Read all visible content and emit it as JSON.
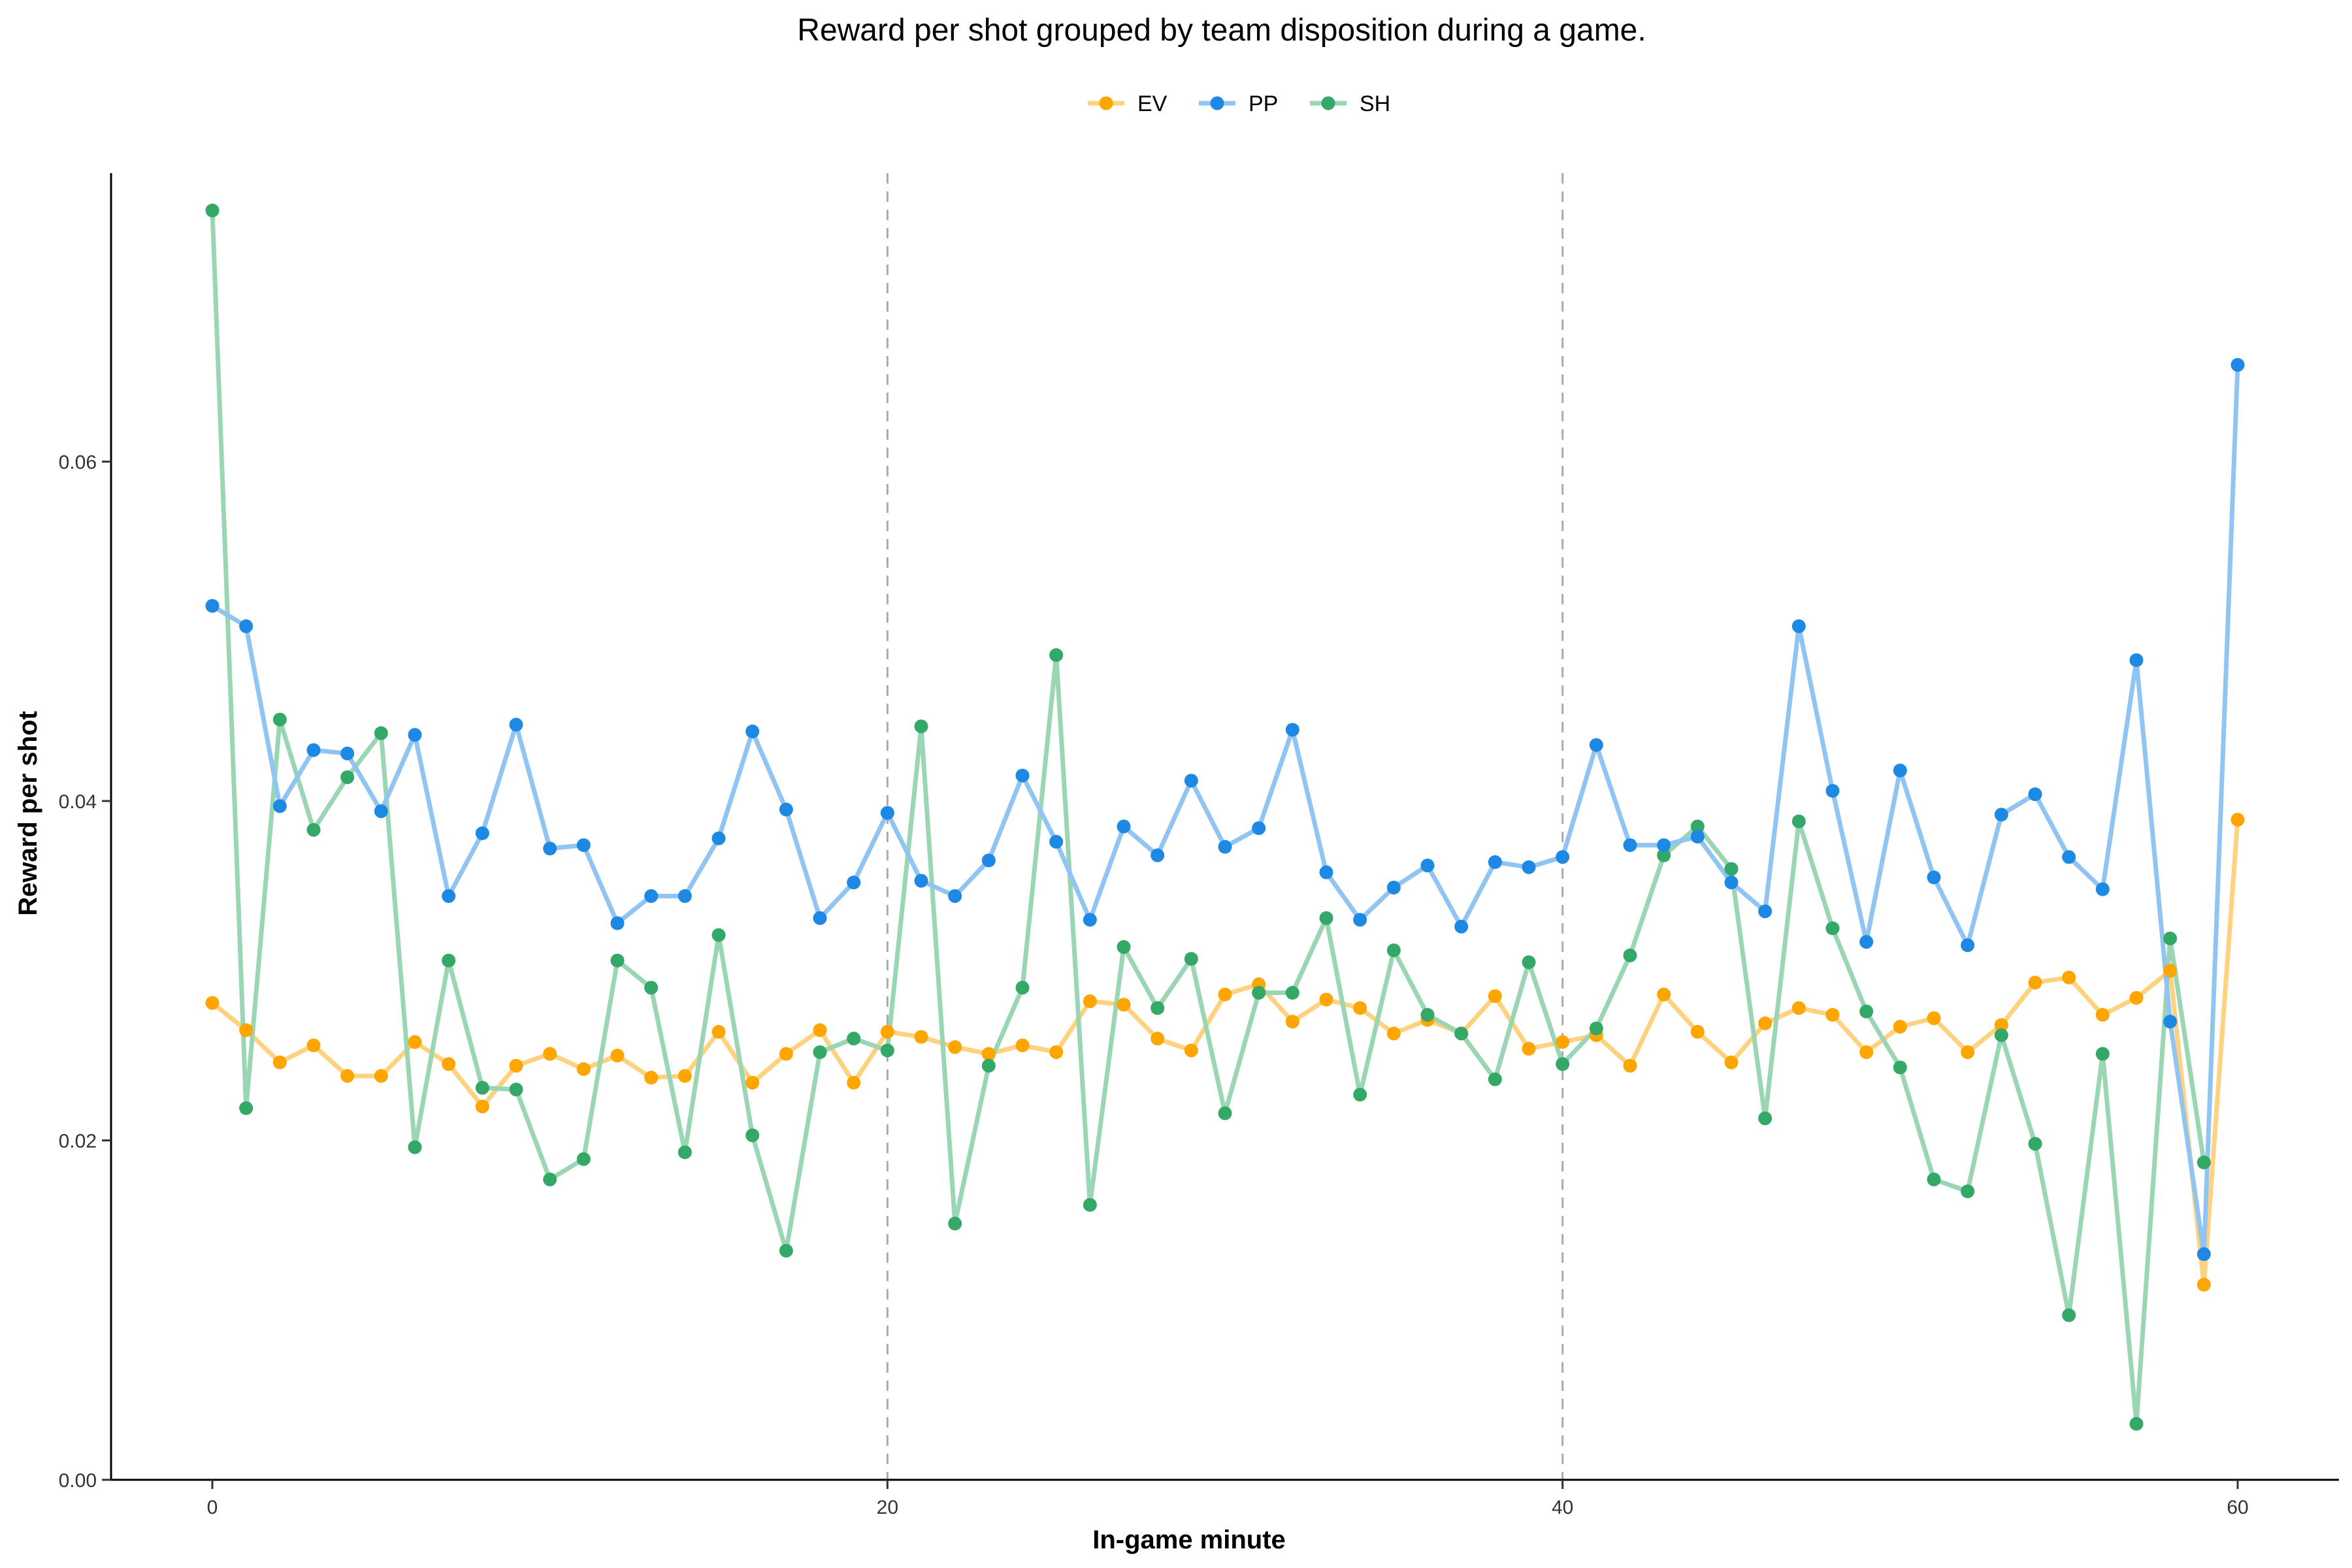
{
  "chart_data": {
    "type": "line",
    "title": "Reward per shot grouped by team disposition during a game.",
    "xlabel": "In-game minute",
    "ylabel": "Reward per shot",
    "xlim": [
      -3,
      63
    ],
    "ylim": [
      0,
      0.077
    ],
    "x_ticks": [
      0,
      20,
      40,
      60
    ],
    "x_tick_labels": [
      "0",
      "20",
      "40",
      "60"
    ],
    "y_ticks": [
      0,
      0.02,
      0.04,
      0.06
    ],
    "y_tick_labels": [
      "0.00",
      "0.02",
      "0.04",
      "0.06"
    ],
    "vlines": [
      20,
      40
    ],
    "grid": false,
    "legend_position": "top",
    "series": [
      {
        "name": "EV",
        "color": "#FFA500",
        "line_color": "#FFD27F",
        "x": [
          0,
          1,
          2,
          3,
          4,
          5,
          6,
          7,
          8,
          9,
          10,
          11,
          12,
          13,
          14,
          15,
          16,
          17,
          18,
          19,
          20,
          21,
          22,
          23,
          24,
          25,
          26,
          27,
          28,
          29,
          30,
          31,
          32,
          33,
          34,
          35,
          36,
          37,
          38,
          39,
          40,
          41,
          42,
          43,
          44,
          45,
          46,
          47,
          48,
          49,
          50,
          51,
          52,
          53,
          54,
          55,
          56,
          57,
          58,
          59,
          60
        ],
        "values": [
          0.0281,
          0.0265,
          0.0246,
          0.0256,
          0.0238,
          0.0238,
          0.0258,
          0.0245,
          0.022,
          0.0244,
          0.0251,
          0.0242,
          0.025,
          0.0237,
          0.0238,
          0.0264,
          0.0234,
          0.0251,
          0.0265,
          0.0234,
          0.0264,
          0.0261,
          0.0255,
          0.0251,
          0.0256,
          0.0252,
          0.0282,
          0.028,
          0.026,
          0.0253,
          0.0286,
          0.0292,
          0.027,
          0.0283,
          0.0278,
          0.0263,
          0.0271,
          0.0263,
          0.0285,
          0.0254,
          0.0258,
          0.0262,
          0.0244,
          0.0286,
          0.0264,
          0.0246,
          0.0269,
          0.0278,
          0.0274,
          0.0252,
          0.0267,
          0.0272,
          0.0252,
          0.0268,
          0.0293,
          0.0296,
          0.0274,
          0.0284,
          0.03,
          0.0115,
          0.0389
        ]
      },
      {
        "name": "PP",
        "color": "#1E88E5",
        "line_color": "#90C4F2",
        "x": [
          0,
          1,
          2,
          3,
          4,
          5,
          6,
          7,
          8,
          9,
          10,
          11,
          12,
          13,
          14,
          15,
          16,
          17,
          18,
          19,
          20,
          21,
          22,
          23,
          24,
          25,
          26,
          27,
          28,
          29,
          30,
          31,
          32,
          33,
          34,
          35,
          36,
          37,
          38,
          39,
          40,
          41,
          42,
          43,
          44,
          45,
          46,
          47,
          48,
          49,
          50,
          51,
          52,
          53,
          54,
          55,
          56,
          57,
          58,
          59,
          60
        ],
        "values": [
          0.0515,
          0.0503,
          0.0397,
          0.043,
          0.0428,
          0.0394,
          0.0439,
          0.0344,
          0.0381,
          0.0445,
          0.0372,
          0.0374,
          0.0328,
          0.0344,
          0.0344,
          0.0378,
          0.0441,
          0.0395,
          0.0331,
          0.0352,
          0.0393,
          0.0353,
          0.0344,
          0.0365,
          0.0415,
          0.0376,
          0.033,
          0.0385,
          0.0368,
          0.0412,
          0.0373,
          0.0384,
          0.0442,
          0.0358,
          0.033,
          0.0349,
          0.0362,
          0.0326,
          0.0364,
          0.0361,
          0.0367,
          0.0433,
          0.0374,
          0.0374,
          0.0379,
          0.0352,
          0.0335,
          0.0503,
          0.0406,
          0.0317,
          0.0418,
          0.0355,
          0.0315,
          0.0392,
          0.0404,
          0.0367,
          0.0348,
          0.0483,
          0.027,
          0.0133,
          0.0657
        ]
      },
      {
        "name": "SH",
        "color": "#33A867",
        "line_color": "#9AD6B3",
        "x": [
          0,
          1,
          2,
          3,
          4,
          5,
          6,
          7,
          8,
          9,
          10,
          11,
          12,
          13,
          14,
          15,
          16,
          17,
          18,
          19,
          20,
          21,
          22,
          23,
          24,
          25,
          26,
          27,
          28,
          29,
          30,
          31,
          32,
          33,
          34,
          35,
          36,
          37,
          38,
          39,
          40,
          41,
          42,
          43,
          44,
          45,
          46,
          47,
          48,
          49,
          50,
          51,
          52,
          53,
          54,
          55,
          56,
          57,
          58,
          59,
          60
        ],
        "values": [
          0.0748,
          0.0219,
          0.0448,
          0.0383,
          0.0414,
          0.044,
          0.0196,
          0.0306,
          0.0231,
          0.023,
          0.0177,
          0.0189,
          0.0306,
          0.029,
          0.0193,
          0.0321,
          0.0203,
          0.0135,
          0.0252,
          0.026,
          0.0253,
          0.0444,
          0.0151,
          0.0244,
          0.029,
          0.0486,
          0.0162,
          0.0314,
          0.0278,
          0.0307,
          0.0216,
          0.0287,
          0.0287,
          0.0331,
          0.0227,
          0.0312,
          0.0274,
          0.0263,
          0.0236,
          0.0305,
          0.0245,
          0.0266,
          0.0309,
          0.0368,
          0.0385,
          0.036,
          0.0213,
          0.0388,
          0.0325,
          0.0276,
          0.0243,
          0.0177,
          0.017,
          0.0262,
          0.0198,
          0.0097,
          0.0251,
          0.0033,
          0.0319,
          0.0187,
          null
        ]
      }
    ]
  }
}
